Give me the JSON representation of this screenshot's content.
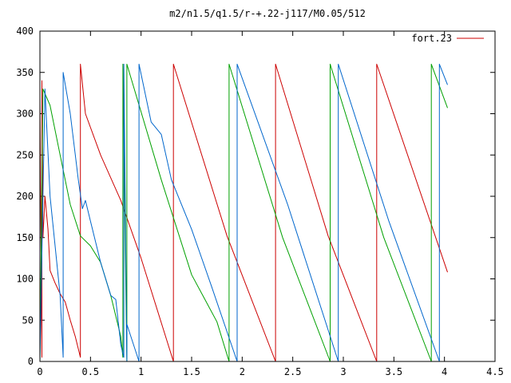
{
  "chart_data": {
    "type": "line",
    "title": "m2/n1.5/q1.5/r-+.22-j117/M0.05/512",
    "xlabel": "",
    "ylabel": "",
    "xlim": [
      0,
      4.5
    ],
    "ylim": [
      0,
      400
    ],
    "x_ticks": [
      "0",
      "0.5",
      "1",
      "1.5",
      "2",
      "2.5",
      "3",
      "3.5",
      "4",
      "4.5"
    ],
    "y_ticks": [
      "0",
      "50",
      "100",
      "150",
      "200",
      "250",
      "300",
      "350",
      "400"
    ],
    "grid": false,
    "legend_position": "top-right",
    "series": [
      {
        "name": "fort.23",
        "color": "#cc0000",
        "points": [
          [
            0.0,
            360
          ],
          [
            0.0,
            320
          ],
          [
            0.02,
            5
          ],
          [
            0.02,
            340
          ],
          [
            0.03,
            150
          ],
          [
            0.05,
            200
          ],
          [
            0.08,
            160
          ],
          [
            0.1,
            110
          ],
          [
            0.15,
            95
          ],
          [
            0.2,
            82
          ],
          [
            0.25,
            72
          ],
          [
            0.3,
            50
          ],
          [
            0.35,
            30
          ],
          [
            0.4,
            5
          ],
          [
            0.4,
            360
          ],
          [
            0.45,
            300
          ],
          [
            0.6,
            250
          ],
          [
            0.8,
            195
          ],
          [
            1.0,
            125
          ],
          [
            1.32,
            0
          ],
          [
            1.32,
            360
          ],
          [
            1.85,
            152
          ],
          [
            2.33,
            0
          ],
          [
            2.33,
            360
          ],
          [
            2.85,
            152
          ],
          [
            3.33,
            0
          ],
          [
            3.33,
            360
          ],
          [
            4.03,
            108
          ]
        ]
      },
      {
        "name": "",
        "color": "#00a000",
        "points": [
          [
            0.0,
            360
          ],
          [
            0.0,
            0
          ],
          [
            0.03,
            330
          ],
          [
            0.1,
            310
          ],
          [
            0.2,
            250
          ],
          [
            0.3,
            190
          ],
          [
            0.4,
            152
          ],
          [
            0.5,
            140
          ],
          [
            0.6,
            120
          ],
          [
            0.7,
            80
          ],
          [
            0.8,
            30
          ],
          [
            0.82,
            5
          ],
          [
            0.82,
            360
          ],
          [
            0.86,
            0
          ],
          [
            0.86,
            360
          ],
          [
            1.2,
            220
          ],
          [
            1.5,
            105
          ],
          [
            1.75,
            48
          ],
          [
            1.87,
            0
          ],
          [
            1.87,
            360
          ],
          [
            2.4,
            150
          ],
          [
            2.87,
            0
          ],
          [
            2.87,
            360
          ],
          [
            3.4,
            150
          ],
          [
            3.87,
            0
          ],
          [
            3.87,
            360
          ],
          [
            4.03,
            307
          ]
        ]
      },
      {
        "name": "",
        "color": "#0066cc",
        "points": [
          [
            0.0,
            360
          ],
          [
            0.0,
            0
          ],
          [
            0.05,
            330
          ],
          [
            0.1,
            200
          ],
          [
            0.2,
            80
          ],
          [
            0.23,
            5
          ],
          [
            0.23,
            350
          ],
          [
            0.3,
            300
          ],
          [
            0.38,
            220
          ],
          [
            0.42,
            185
          ],
          [
            0.45,
            195
          ],
          [
            0.5,
            170
          ],
          [
            0.6,
            120
          ],
          [
            0.7,
            80
          ],
          [
            0.75,
            75
          ],
          [
            0.8,
            20
          ],
          [
            0.83,
            5
          ],
          [
            0.83,
            360
          ],
          [
            0.86,
            0
          ],
          [
            0.86,
            45
          ],
          [
            0.98,
            0
          ],
          [
            0.98,
            360
          ],
          [
            1.1,
            290
          ],
          [
            1.2,
            275
          ],
          [
            1.3,
            220
          ],
          [
            1.5,
            160
          ],
          [
            1.7,
            90
          ],
          [
            1.95,
            0
          ],
          [
            1.95,
            360
          ],
          [
            2.45,
            190
          ],
          [
            2.95,
            0
          ],
          [
            2.95,
            360
          ],
          [
            3.45,
            170
          ],
          [
            3.95,
            0
          ],
          [
            3.95,
            360
          ],
          [
            4.03,
            335
          ]
        ]
      }
    ]
  }
}
